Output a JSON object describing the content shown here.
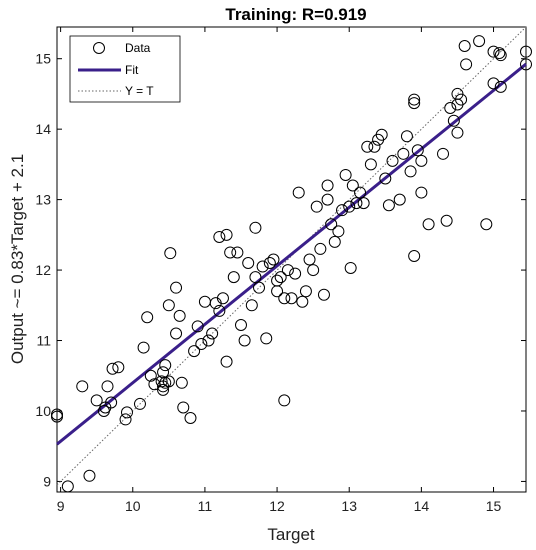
{
  "chart_data": {
    "type": "scatter",
    "title": "Training: R=0.919",
    "xlabel": "Target",
    "ylabel": "Output ~= 0.83*Target + 2.1",
    "xlim": [
      8.95,
      15.45
    ],
    "ylim": [
      8.85,
      15.45
    ],
    "xticks": [
      "9",
      "10",
      "11",
      "12",
      "13",
      "14",
      "15"
    ],
    "yticks": [
      "9",
      "10",
      "11",
      "12",
      "13",
      "14",
      "15"
    ],
    "grid": false,
    "legend": {
      "position": "top-left",
      "entries": [
        "Data",
        "Fit",
        "Y = T"
      ]
    },
    "colors": {
      "data": "#000000",
      "fit": "#3a1f8a",
      "identity": "#666666"
    },
    "fit": {
      "slope": 0.83,
      "intercept": 2.1
    },
    "series": [
      {
        "name": "Data",
        "points": [
          [
            8.95,
            9.95
          ],
          [
            8.95,
            9.92
          ],
          [
            9.1,
            8.93
          ],
          [
            9.3,
            10.35
          ],
          [
            9.4,
            9.08
          ],
          [
            9.5,
            10.15
          ],
          [
            9.6,
            10.0
          ],
          [
            9.62,
            10.05
          ],
          [
            9.65,
            10.35
          ],
          [
            9.7,
            10.12
          ],
          [
            9.72,
            10.6
          ],
          [
            9.8,
            10.62
          ],
          [
            9.9,
            9.88
          ],
          [
            9.92,
            9.98
          ],
          [
            10.1,
            10.1
          ],
          [
            10.15,
            10.9
          ],
          [
            10.2,
            11.33
          ],
          [
            10.25,
            10.5
          ],
          [
            10.3,
            10.38
          ],
          [
            10.4,
            10.42
          ],
          [
            10.42,
            10.55
          ],
          [
            10.45,
            10.65
          ],
          [
            10.42,
            10.35
          ],
          [
            10.42,
            10.3
          ],
          [
            10.45,
            10.4
          ],
          [
            10.5,
            11.5
          ],
          [
            10.5,
            10.42
          ],
          [
            10.52,
            12.24
          ],
          [
            10.6,
            11.75
          ],
          [
            10.6,
            11.1
          ],
          [
            10.65,
            11.35
          ],
          [
            10.68,
            10.4
          ],
          [
            10.7,
            10.05
          ],
          [
            10.8,
            9.9
          ],
          [
            10.85,
            10.85
          ],
          [
            10.9,
            11.2
          ],
          [
            10.95,
            10.95
          ],
          [
            11.0,
            11.55
          ],
          [
            11.05,
            11.0
          ],
          [
            11.1,
            11.1
          ],
          [
            11.15,
            11.53
          ],
          [
            11.2,
            11.42
          ],
          [
            11.2,
            12.47
          ],
          [
            11.25,
            11.6
          ],
          [
            11.3,
            10.7
          ],
          [
            11.3,
            12.5
          ],
          [
            11.35,
            12.25
          ],
          [
            11.4,
            11.9
          ],
          [
            11.45,
            12.25
          ],
          [
            11.5,
            11.22
          ],
          [
            11.55,
            11.0
          ],
          [
            11.6,
            12.1
          ],
          [
            11.65,
            11.5
          ],
          [
            11.7,
            11.9
          ],
          [
            11.7,
            12.6
          ],
          [
            11.75,
            11.75
          ],
          [
            11.8,
            12.05
          ],
          [
            11.85,
            11.03
          ],
          [
            11.9,
            12.1
          ],
          [
            11.95,
            12.15
          ],
          [
            12.0,
            11.7
          ],
          [
            12.0,
            11.85
          ],
          [
            12.05,
            11.9
          ],
          [
            12.1,
            10.15
          ],
          [
            12.1,
            11.6
          ],
          [
            12.15,
            12.0
          ],
          [
            12.2,
            11.6
          ],
          [
            12.25,
            11.95
          ],
          [
            12.3,
            13.1
          ],
          [
            12.35,
            11.55
          ],
          [
            12.4,
            11.7
          ],
          [
            12.45,
            12.15
          ],
          [
            12.5,
            12.0
          ],
          [
            12.55,
            12.9
          ],
          [
            12.6,
            12.3
          ],
          [
            12.65,
            11.65
          ],
          [
            12.7,
            13.0
          ],
          [
            12.7,
            13.2
          ],
          [
            12.75,
            12.65
          ],
          [
            12.8,
            12.4
          ],
          [
            12.85,
            12.55
          ],
          [
            12.9,
            12.85
          ],
          [
            12.95,
            13.35
          ],
          [
            13.0,
            12.9
          ],
          [
            13.02,
            12.03
          ],
          [
            13.05,
            13.2
          ],
          [
            13.1,
            12.95
          ],
          [
            13.15,
            13.1
          ],
          [
            13.2,
            12.95
          ],
          [
            13.25,
            13.75
          ],
          [
            13.3,
            13.5
          ],
          [
            13.35,
            13.75
          ],
          [
            13.4,
            13.85
          ],
          [
            13.45,
            13.92
          ],
          [
            13.5,
            13.3
          ],
          [
            13.55,
            12.92
          ],
          [
            13.6,
            13.55
          ],
          [
            13.7,
            13.0
          ],
          [
            13.75,
            13.65
          ],
          [
            13.8,
            13.9
          ],
          [
            13.85,
            13.4
          ],
          [
            13.9,
            14.42
          ],
          [
            13.9,
            14.37
          ],
          [
            13.95,
            13.7
          ],
          [
            14.0,
            13.55
          ],
          [
            13.9,
            12.2
          ],
          [
            14.0,
            13.1
          ],
          [
            14.1,
            12.65
          ],
          [
            14.3,
            13.65
          ],
          [
            14.35,
            12.7
          ],
          [
            14.4,
            14.3
          ],
          [
            14.45,
            14.12
          ],
          [
            14.5,
            13.95
          ],
          [
            14.5,
            14.35
          ],
          [
            14.5,
            14.5
          ],
          [
            14.55,
            14.42
          ],
          [
            14.6,
            15.18
          ],
          [
            14.62,
            14.92
          ],
          [
            14.8,
            15.25
          ],
          [
            14.9,
            12.65
          ],
          [
            15.0,
            15.1
          ],
          [
            15.0,
            14.65
          ],
          [
            15.08,
            15.08
          ],
          [
            15.1,
            14.6
          ],
          [
            15.1,
            15.05
          ],
          [
            15.45,
            15.1
          ],
          [
            15.45,
            14.92
          ]
        ]
      }
    ]
  }
}
